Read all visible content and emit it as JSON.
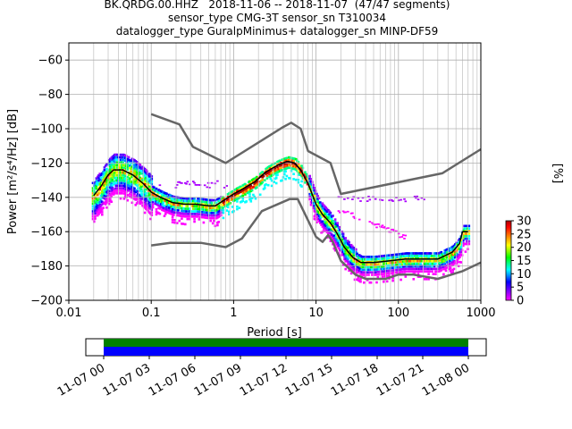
{
  "title": {
    "line1": "BK.QRDG.00.HHZ   2018-11-06 -- 2018-11-07  (47/47 segments)",
    "line2": "sensor_type CMG-3T sensor_sn T310034",
    "line3": "datalogger_type GuralpMinimus+ datalogger_sn MINP-DF59"
  },
  "chart_data": {
    "type": "heatmap",
    "xlabel": "Period [s]",
    "ylabel": "Power [m²/s⁴/Hz] [dB]",
    "xscale": "log",
    "xlim": [
      0.01,
      1000
    ],
    "ylim": [
      -200,
      -50
    ],
    "xticks": [
      0.01,
      0.1,
      1,
      10,
      100,
      1000
    ],
    "xtick_labels": [
      "0.01",
      "0.1",
      "1",
      "10",
      "100",
      "1000"
    ],
    "yticks": [
      -200,
      -180,
      -160,
      -140,
      -120,
      -100,
      -80,
      -60
    ],
    "grid": true,
    "colorbar": {
      "label": "[%]",
      "ticks": [
        0,
        5,
        10,
        15,
        20,
        25,
        30
      ],
      "range": [
        0,
        30
      ],
      "colormap": [
        "#ff00ff",
        "#ab00ff",
        "#5500ff",
        "#0000ff",
        "#0088ff",
        "#00ffff",
        "#00ff88",
        "#00ff00",
        "#88ff00",
        "#ffff00",
        "#ffaa00",
        "#ff5500",
        "#ff0000",
        "#aa0000"
      ]
    },
    "mean_curve": {
      "color": "#000000",
      "points": [
        [
          0.02,
          -139
        ],
        [
          0.025,
          -133
        ],
        [
          0.03,
          -127
        ],
        [
          0.035,
          -124
        ],
        [
          0.045,
          -124
        ],
        [
          0.06,
          -127
        ],
        [
          0.08,
          -132
        ],
        [
          0.1,
          -137
        ],
        [
          0.13,
          -140
        ],
        [
          0.18,
          -143
        ],
        [
          0.25,
          -144
        ],
        [
          0.35,
          -144
        ],
        [
          0.5,
          -145
        ],
        [
          0.6,
          -145
        ],
        [
          0.8,
          -141
        ],
        [
          1,
          -138
        ],
        [
          1.3,
          -135
        ],
        [
          1.8,
          -131
        ],
        [
          2.5,
          -125
        ],
        [
          3.5,
          -121
        ],
        [
          4.5,
          -119
        ],
        [
          5.5,
          -120
        ],
        [
          6.5,
          -124
        ],
        [
          8,
          -132
        ],
        [
          10,
          -144
        ],
        [
          12,
          -150
        ],
        [
          15,
          -155
        ],
        [
          18,
          -161
        ],
        [
          22,
          -169
        ],
        [
          28,
          -175
        ],
        [
          35,
          -178
        ],
        [
          50,
          -178
        ],
        [
          80,
          -177
        ],
        [
          120,
          -176
        ],
        [
          200,
          -176
        ],
        [
          300,
          -176
        ],
        [
          450,
          -172
        ],
        [
          550,
          -167
        ],
        [
          600,
          -160
        ],
        [
          700,
          -160
        ]
      ]
    },
    "noise_model_high": {
      "color": "#666666",
      "points": [
        [
          0.1,
          -91.5
        ],
        [
          0.22,
          -97.5
        ],
        [
          0.32,
          -110.5
        ],
        [
          0.8,
          -120
        ],
        [
          4,
          -99
        ],
        [
          5,
          -96.5
        ],
        [
          6.5,
          -100
        ],
        [
          8,
          -113
        ],
        [
          15,
          -120
        ],
        [
          20,
          -138
        ],
        [
          340,
          -126
        ],
        [
          1000,
          -112
        ]
      ]
    },
    "noise_model_low": {
      "color": "#666666",
      "points": [
        [
          0.1,
          -168
        ],
        [
          0.17,
          -166.5
        ],
        [
          0.4,
          -166.5
        ],
        [
          0.8,
          -169
        ],
        [
          1.26,
          -164
        ],
        [
          2.2,
          -148
        ],
        [
          4.8,
          -141
        ],
        [
          6,
          -141
        ],
        [
          10,
          -163
        ],
        [
          12,
          -166
        ],
        [
          14,
          -162
        ],
        [
          16,
          -166
        ],
        [
          20,
          -177
        ],
        [
          30,
          -185
        ],
        [
          40,
          -187.5
        ],
        [
          70,
          -187.5
        ],
        [
          100,
          -185
        ],
        [
          150,
          -185
        ],
        [
          300,
          -187.5
        ],
        [
          600,
          -183
        ],
        [
          1000,
          -178
        ]
      ]
    },
    "timeline": {
      "tick_labels": [
        "11-07 00",
        "11-07 03",
        "11-07 06",
        "11-07 09",
        "11-07 12",
        "11-07 15",
        "11-07 18",
        "11-07 21",
        "11-08 00"
      ],
      "bar_colors": [
        "#008000",
        "#0000ff"
      ]
    }
  }
}
